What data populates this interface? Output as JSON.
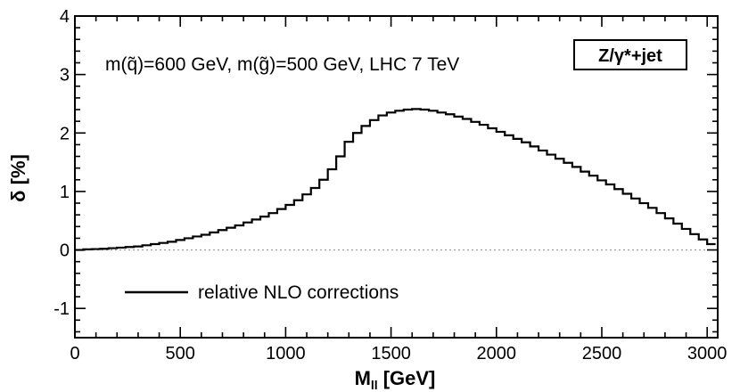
{
  "chart_data": {
    "type": "line",
    "style": "step",
    "title": "",
    "xlabel_main": "M",
    "xlabel_sub": "ll",
    "xlabel_unit": "[GeV]",
    "ylabel": "δ [%]",
    "xlim": [
      0,
      3050
    ],
    "ylim": [
      -1.5,
      4
    ],
    "xticks": [
      0,
      500,
      1000,
      1500,
      2000,
      2500,
      3000
    ],
    "yticks": [
      -1,
      0,
      1,
      2,
      3,
      4
    ],
    "xtick_labels": [
      "0",
      "500",
      "1000",
      "1500",
      "2000",
      "2500",
      "3000"
    ],
    "ytick_labels": [
      "-1",
      "0",
      "1",
      "2",
      "3",
      "4"
    ],
    "annotation": "m(q̃)=600 GeV, m(g̃)=500 GeV, LHC 7 TeV",
    "box_label": "Z/γ*+jet",
    "reference_line_y": 0,
    "bin_width": 40,
    "series": [
      {
        "name": "relative NLO corrections",
        "x_start": 0,
        "values": [
          0.0,
          0.01,
          0.015,
          0.02,
          0.03,
          0.04,
          0.05,
          0.06,
          0.08,
          0.1,
          0.12,
          0.14,
          0.17,
          0.2,
          0.23,
          0.26,
          0.3,
          0.34,
          0.38,
          0.42,
          0.47,
          0.52,
          0.57,
          0.63,
          0.7,
          0.77,
          0.85,
          0.95,
          1.06,
          1.2,
          1.38,
          1.6,
          1.85,
          2.0,
          2.12,
          2.22,
          2.3,
          2.35,
          2.38,
          2.4,
          2.41,
          2.4,
          2.38,
          2.35,
          2.32,
          2.28,
          2.24,
          2.19,
          2.14,
          2.08,
          2.02,
          1.96,
          1.9,
          1.84,
          1.77,
          1.7,
          1.63,
          1.56,
          1.49,
          1.42,
          1.34,
          1.27,
          1.19,
          1.12,
          1.04,
          0.96,
          0.88,
          0.8,
          0.72,
          0.63,
          0.54,
          0.45,
          0.36,
          0.27,
          0.18,
          0.1
        ]
      }
    ],
    "legend": [
      "relative NLO corrections"
    ]
  }
}
